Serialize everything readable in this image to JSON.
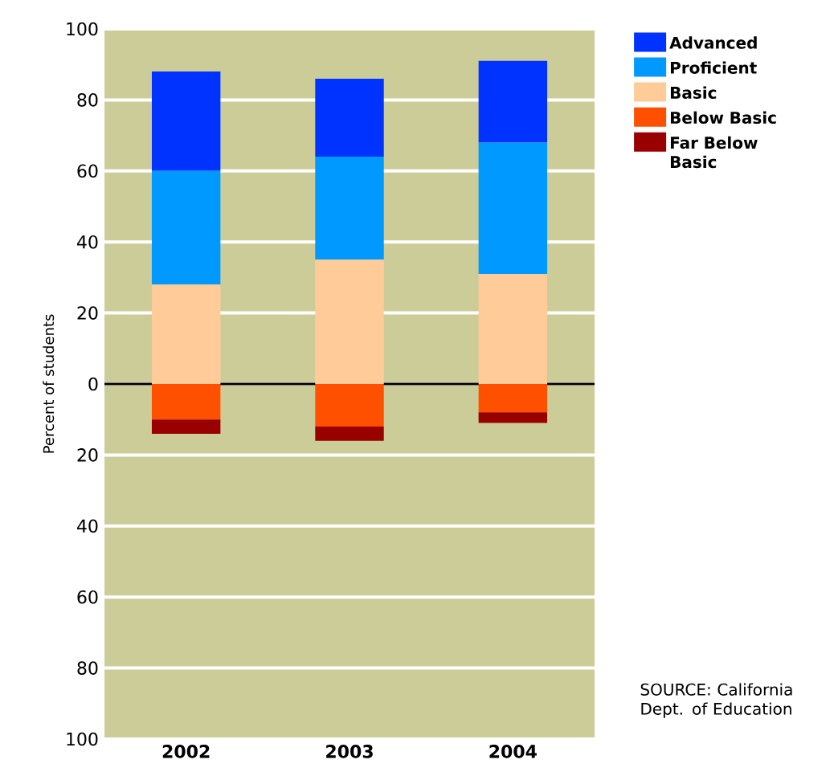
{
  "chart_data": {
    "type": "bar",
    "stacked": true,
    "ylabel": "Percent of students",
    "categories": [
      "2002",
      "2003",
      "2004"
    ],
    "series": [
      {
        "name": "Basic",
        "color": "#ffcc99",
        "values": [
          28,
          35,
          31
        ]
      },
      {
        "name": "Proficient",
        "color": "#0099ff",
        "values": [
          32,
          29,
          37
        ]
      },
      {
        "name": "Advanced",
        "color": "#0033ff",
        "values": [
          28,
          22,
          23
        ]
      },
      {
        "name": "Below Basic",
        "color": "#ff5000",
        "values": [
          -10,
          -12,
          -8
        ]
      },
      {
        "name": "Far Below Basic",
        "color": "#990000",
        "values": [
          -4,
          -4,
          -3
        ]
      }
    ],
    "ylim": [
      -100,
      100
    ],
    "yticks": [
      {
        "value": -100,
        "label": "100"
      },
      {
        "value": -80,
        "label": "80"
      },
      {
        "value": -60,
        "label": "60"
      },
      {
        "value": -40,
        "label": "40"
      },
      {
        "value": -20,
        "label": "20"
      },
      0,
      20,
      40,
      60,
      80,
      100
    ],
    "grid": "y",
    "legend": "top right",
    "annotations": [
      "SOURCE: California Dept. of Education"
    ]
  }
}
